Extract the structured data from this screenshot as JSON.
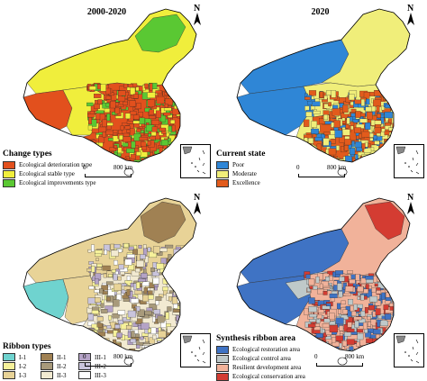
{
  "panels": [
    {
      "id": "change",
      "title": "2000-2020",
      "legend_title": "Change  types",
      "legend": [
        {
          "label": "Ecological deterioration type",
          "color": "#e2501d"
        },
        {
          "label": "Ecological stable type",
          "color": "#f0ee3c"
        },
        {
          "label": "Ecological improvements type",
          "color": "#5ac833"
        }
      ]
    },
    {
      "id": "current",
      "title": "2020",
      "legend_title": "Current state",
      "legend": [
        {
          "label": "Poor",
          "color": "#2f86d6"
        },
        {
          "label": "Moderate",
          "color": "#f0ee7a"
        },
        {
          "label": "Excellence",
          "color": "#e25b1c"
        }
      ]
    },
    {
      "id": "ribbon",
      "title": "",
      "legend_title": "Ribbon types",
      "legend": [
        {
          "label": "I-1",
          "color": "#6fd3cf"
        },
        {
          "label": "II-1",
          "color": "#a08153"
        },
        {
          "label": "III-1",
          "color": "#b4a2c6"
        },
        {
          "label": "I-2",
          "color": "#f6f19a"
        },
        {
          "label": "II-2",
          "color": "#a89a7b"
        },
        {
          "label": "III-2",
          "color": "#c9c4dc"
        },
        {
          "label": "I-3",
          "color": "#e8d397"
        },
        {
          "label": "II-3",
          "color": "#f2ead1"
        },
        {
          "label": "III-3",
          "color": "#ffffff"
        }
      ]
    },
    {
      "id": "synthesis",
      "title": "",
      "legend_title": "Synthesis ribbon area",
      "legend": [
        {
          "label": "Ecological restoration area",
          "color": "#3f73c4"
        },
        {
          "label": "Ecological control area",
          "color": "#bfc9c9"
        },
        {
          "label": "Resilient development area",
          "color": "#f1b29a"
        },
        {
          "label": "Ecological conservation area",
          "color": "#d43c32"
        }
      ]
    }
  ],
  "scale": {
    "zero": "0",
    "distance": "800  km"
  },
  "north_label": "N"
}
